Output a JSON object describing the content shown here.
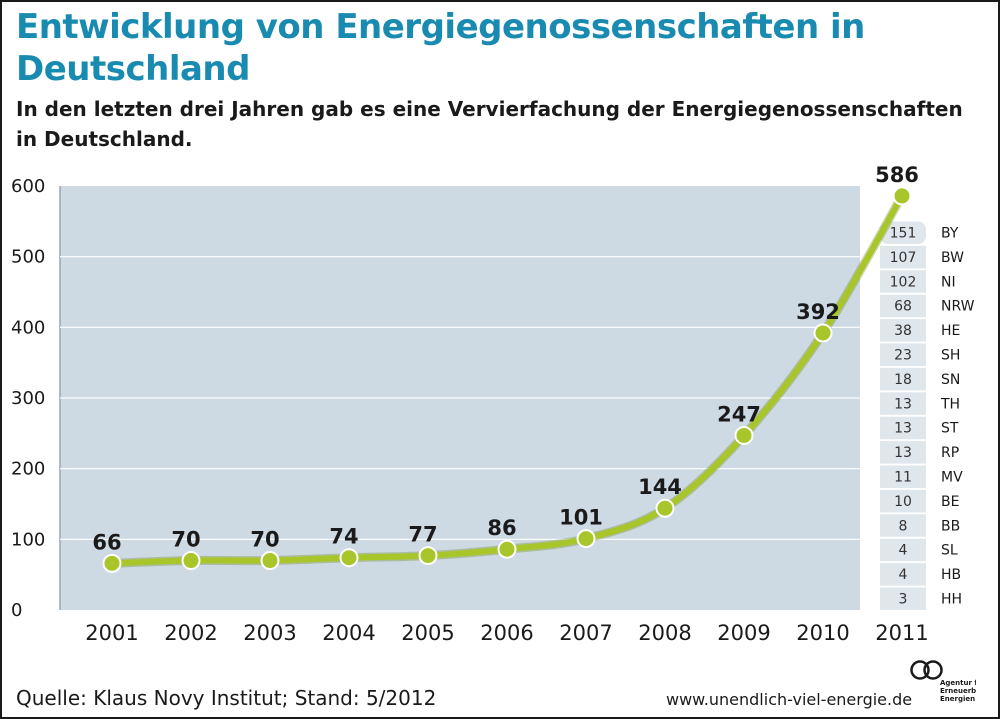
{
  "title": "Entwicklung von Energiegenossenschaften in Deutschland",
  "subtitle": "In den letzten drei Jahren gab es eine Vervierfachung der Energiegenossenschaften in Deutschland.",
  "source": "Quelle: Klaus Novy Institut; Stand: 5/2012",
  "website": "www.unendlich-viel-energie.de",
  "logo": {
    "icon": "infinity-icon",
    "lines": [
      "Agentur für",
      "Erneuerbare",
      "Energien"
    ]
  },
  "colors": {
    "title": "#1a8bb0",
    "line": "#a8c62a",
    "plot_background": "#cdd9e3",
    "breakdown_cells": "#dfe6ec"
  },
  "chart_data": {
    "type": "line",
    "x": [
      "2001",
      "2002",
      "2003",
      "2004",
      "2005",
      "2006",
      "2007",
      "2008",
      "2009",
      "2010",
      "2011"
    ],
    "values": [
      66,
      70,
      70,
      74,
      77,
      86,
      101,
      144,
      247,
      392,
      586
    ],
    "yticks": [
      0,
      100,
      200,
      300,
      400,
      500,
      600
    ],
    "ylim": [
      0,
      600
    ],
    "grid": true,
    "breakdown_2011": {
      "states": [
        "BY",
        "BW",
        "NI",
        "NRW",
        "HE",
        "SH",
        "SN",
        "TH",
        "ST",
        "RP",
        "MV",
        "BE",
        "BB",
        "SL",
        "HB",
        "HH"
      ],
      "values": [
        151,
        107,
        102,
        68,
        38,
        23,
        18,
        13,
        13,
        13,
        11,
        10,
        8,
        4,
        4,
        3
      ]
    }
  }
}
